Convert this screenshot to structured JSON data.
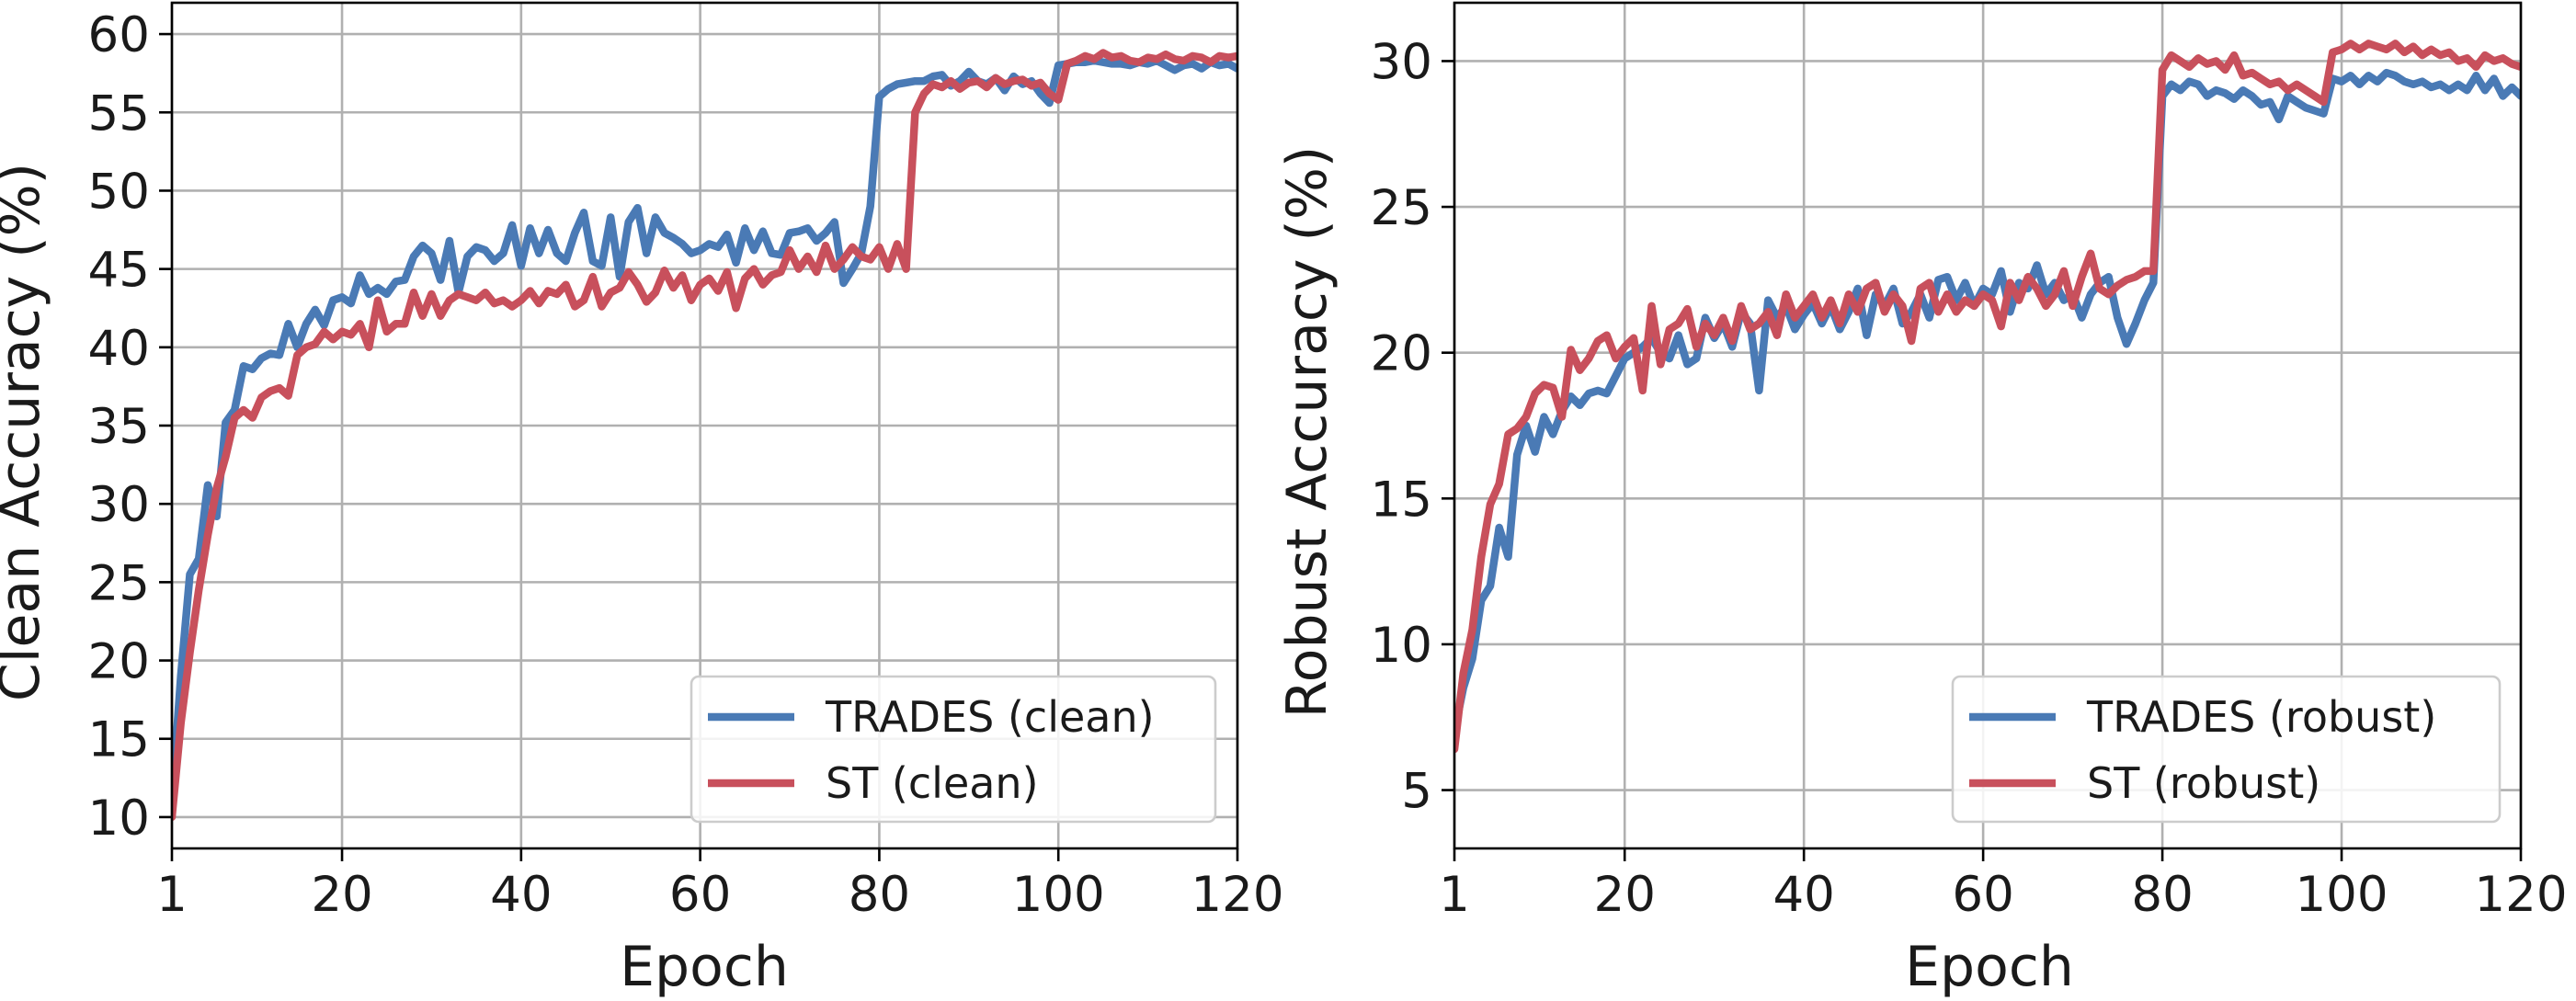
{
  "chart_data": [
    {
      "type": "line",
      "xlabel": "Epoch",
      "ylabel": "Clean Accuracy (%)",
      "xlim": [
        1,
        120
      ],
      "ylim": [
        8,
        62
      ],
      "xticks": [
        1,
        20,
        40,
        60,
        80,
        100,
        120
      ],
      "yticks": [
        10,
        15,
        20,
        25,
        30,
        35,
        40,
        45,
        50,
        55,
        60
      ],
      "grid": true,
      "legend_position": "bottom-right",
      "series": [
        {
          "name": "TRADES (clean)",
          "color": "#4a7ab5",
          "x": [
            1,
            2,
            3,
            4,
            5,
            6,
            7,
            8,
            9,
            10,
            11,
            12,
            13,
            14,
            15,
            16,
            17,
            18,
            19,
            20,
            21,
            22,
            23,
            24,
            25,
            26,
            27,
            28,
            29,
            30,
            31,
            32,
            33,
            34,
            35,
            36,
            37,
            38,
            39,
            40,
            41,
            42,
            43,
            44,
            45,
            46,
            47,
            48,
            49,
            50,
            51,
            52,
            53,
            54,
            55,
            56,
            57,
            58,
            59,
            60,
            61,
            62,
            63,
            64,
            65,
            66,
            67,
            68,
            69,
            70,
            71,
            72,
            73,
            74,
            75,
            76,
            77,
            78,
            79,
            80,
            81,
            82,
            83,
            84,
            85,
            86,
            87,
            88,
            89,
            90,
            91,
            92,
            93,
            94,
            95,
            96,
            97,
            98,
            99,
            100,
            101,
            102,
            103,
            104,
            105,
            106,
            107,
            108,
            109,
            110,
            111,
            112,
            113,
            114,
            115,
            116,
            117,
            118,
            119,
            120
          ],
          "y": [
            11.0,
            19.0,
            25.5,
            26.5,
            31.2,
            29.2,
            35.2,
            36.0,
            38.8,
            38.6,
            39.3,
            39.6,
            39.5,
            41.5,
            40.0,
            41.5,
            42.4,
            41.4,
            43.0,
            43.2,
            42.8,
            44.6,
            43.4,
            43.8,
            43.4,
            44.2,
            44.3,
            45.8,
            46.5,
            46.0,
            44.3,
            46.8,
            43.5,
            45.8,
            46.4,
            46.2,
            45.5,
            46.0,
            47.8,
            45.2,
            47.6,
            46.0,
            47.5,
            46.0,
            45.5,
            47.3,
            48.6,
            45.5,
            45.2,
            48.3,
            44.5,
            48.0,
            48.9,
            46.0,
            48.3,
            47.3,
            47.0,
            46.6,
            46.0,
            46.2,
            46.6,
            46.4,
            47.2,
            45.4,
            47.6,
            46.2,
            47.4,
            46.0,
            45.9,
            47.3,
            47.4,
            47.6,
            46.8,
            47.3,
            48.0,
            44.1,
            45.0,
            46.0,
            49.0,
            56.0,
            56.5,
            56.8,
            56.9,
            57.0,
            57.0,
            57.3,
            57.4,
            56.7,
            57.0,
            57.6,
            57.0,
            56.8,
            57.2,
            56.4,
            57.3,
            56.8,
            57.0,
            56.2,
            55.6,
            58.0,
            58.1,
            58.2,
            58.2,
            58.3,
            58.2,
            58.1,
            58.1,
            58.0,
            58.2,
            58.1,
            58.3,
            58.0,
            57.7,
            58.0,
            58.1,
            57.8,
            58.2,
            58.0,
            58.1,
            57.8
          ]
        },
        {
          "name": "ST (clean)",
          "color": "#c8505c",
          "x": [
            1,
            2,
            3,
            4,
            5,
            6,
            7,
            8,
            9,
            10,
            11,
            12,
            13,
            14,
            15,
            16,
            17,
            18,
            19,
            20,
            21,
            22,
            23,
            24,
            25,
            26,
            27,
            28,
            29,
            30,
            31,
            32,
            33,
            34,
            35,
            36,
            37,
            38,
            39,
            40,
            41,
            42,
            43,
            44,
            45,
            46,
            47,
            48,
            49,
            50,
            51,
            52,
            53,
            54,
            55,
            56,
            57,
            58,
            59,
            60,
            61,
            62,
            63,
            64,
            65,
            66,
            67,
            68,
            69,
            70,
            71,
            72,
            73,
            74,
            75,
            76,
            77,
            78,
            79,
            80,
            81,
            82,
            83,
            84,
            85,
            86,
            87,
            88,
            89,
            90,
            91,
            92,
            93,
            94,
            95,
            96,
            97,
            98,
            99,
            100,
            101,
            102,
            103,
            104,
            105,
            106,
            107,
            108,
            109,
            110,
            111,
            112,
            113,
            114,
            115,
            116,
            117,
            118,
            119,
            120
          ],
          "y": [
            10.0,
            16.0,
            20.5,
            24.5,
            28.0,
            31.0,
            33.0,
            35.5,
            36.0,
            35.5,
            36.8,
            37.2,
            37.4,
            36.9,
            39.5,
            40.0,
            40.2,
            41.0,
            40.5,
            41.0,
            40.8,
            41.5,
            40.0,
            43.0,
            41.0,
            41.5,
            41.5,
            43.5,
            42.0,
            43.4,
            42.0,
            43.0,
            43.4,
            43.2,
            43.0,
            43.5,
            42.8,
            43.0,
            42.6,
            43.0,
            43.6,
            42.8,
            43.6,
            43.4,
            44.0,
            42.6,
            43.0,
            44.5,
            42.6,
            43.5,
            43.8,
            44.8,
            44.0,
            42.9,
            43.5,
            44.9,
            43.8,
            44.6,
            43.0,
            44.0,
            44.4,
            43.6,
            44.8,
            42.5,
            44.4,
            45.0,
            44.0,
            44.6,
            44.8,
            46.2,
            45.0,
            45.8,
            44.8,
            46.5,
            45.0,
            45.6,
            46.4,
            45.8,
            45.6,
            46.4,
            45.0,
            46.6,
            45.0,
            55.0,
            56.2,
            56.8,
            56.6,
            57.0,
            56.5,
            56.9,
            57.0,
            56.6,
            57.2,
            56.8,
            57.0,
            57.1,
            56.7,
            56.9,
            56.2,
            55.8,
            58.1,
            58.3,
            58.6,
            58.4,
            58.8,
            58.5,
            58.6,
            58.3,
            58.2,
            58.5,
            58.4,
            58.7,
            58.4,
            58.3,
            58.6,
            58.5,
            58.2,
            58.6,
            58.5,
            58.6
          ]
        }
      ]
    },
    {
      "type": "line",
      "xlabel": "Epoch",
      "ylabel": "Robust Accuracy (%)",
      "xlim": [
        1,
        120
      ],
      "ylim": [
        3,
        32
      ],
      "xticks": [
        1,
        20,
        40,
        60,
        80,
        100,
        120
      ],
      "yticks": [
        5,
        10,
        15,
        20,
        25,
        30
      ],
      "grid": true,
      "legend_position": "bottom-right",
      "series": [
        {
          "name": "TRADES (robust)",
          "color": "#4a7ab5",
          "x": [
            1,
            2,
            3,
            4,
            5,
            6,
            7,
            8,
            9,
            10,
            11,
            12,
            13,
            14,
            15,
            16,
            17,
            18,
            19,
            20,
            21,
            22,
            23,
            24,
            25,
            26,
            27,
            28,
            29,
            30,
            31,
            32,
            33,
            34,
            35,
            36,
            37,
            38,
            39,
            40,
            41,
            42,
            43,
            44,
            45,
            46,
            47,
            48,
            49,
            50,
            51,
            52,
            53,
            54,
            55,
            56,
            57,
            58,
            59,
            60,
            61,
            62,
            63,
            64,
            65,
            66,
            67,
            68,
            69,
            70,
            71,
            72,
            73,
            74,
            75,
            76,
            77,
            78,
            79,
            80,
            81,
            82,
            83,
            84,
            85,
            86,
            87,
            88,
            89,
            90,
            91,
            92,
            93,
            94,
            95,
            96,
            97,
            98,
            99,
            100,
            101,
            102,
            103,
            104,
            105,
            106,
            107,
            108,
            109,
            110,
            111,
            112,
            113,
            114,
            115,
            116,
            117,
            118,
            119,
            120
          ],
          "y": [
            7.0,
            8.5,
            9.5,
            11.5,
            12.0,
            14.0,
            13.0,
            16.5,
            17.5,
            16.6,
            17.8,
            17.2,
            18.0,
            18.5,
            18.2,
            18.6,
            18.7,
            18.6,
            19.2,
            19.8,
            20.0,
            20.2,
            20.5,
            20.0,
            19.8,
            20.6,
            19.6,
            19.8,
            21.2,
            20.5,
            21.0,
            20.2,
            21.4,
            21.0,
            18.7,
            21.8,
            21.2,
            21.6,
            20.8,
            21.3,
            21.7,
            21.0,
            21.6,
            20.8,
            21.4,
            22.2,
            20.6,
            22.0,
            21.6,
            22.2,
            21.0,
            21.4,
            22.0,
            21.2,
            22.5,
            22.6,
            21.8,
            22.4,
            21.6,
            22.2,
            22.0,
            22.8,
            21.4,
            22.4,
            22.2,
            23.0,
            22.0,
            22.4,
            21.8,
            22.0,
            21.2,
            22.0,
            22.4,
            22.6,
            21.2,
            20.3,
            21.0,
            21.8,
            22.4,
            28.8,
            29.2,
            29.0,
            29.3,
            29.2,
            28.8,
            29.0,
            28.9,
            28.7,
            29.0,
            28.8,
            28.5,
            28.6,
            28.0,
            28.8,
            28.6,
            28.4,
            28.3,
            28.2,
            29.4,
            29.3,
            29.5,
            29.2,
            29.5,
            29.3,
            29.6,
            29.5,
            29.3,
            29.2,
            29.3,
            29.1,
            29.2,
            29.0,
            29.2,
            29.0,
            29.5,
            29.0,
            29.4,
            28.8,
            29.1,
            28.8
          ]
        },
        {
          "name": "ST (robust)",
          "color": "#c8505c",
          "x": [
            1,
            2,
            3,
            4,
            5,
            6,
            7,
            8,
            9,
            10,
            11,
            12,
            13,
            14,
            15,
            16,
            17,
            18,
            19,
            20,
            21,
            22,
            23,
            24,
            25,
            26,
            27,
            28,
            29,
            30,
            31,
            32,
            33,
            34,
            35,
            36,
            37,
            38,
            39,
            40,
            41,
            42,
            43,
            44,
            45,
            46,
            47,
            48,
            49,
            50,
            51,
            52,
            53,
            54,
            55,
            56,
            57,
            58,
            59,
            60,
            61,
            62,
            63,
            64,
            65,
            66,
            67,
            68,
            69,
            70,
            71,
            72,
            73,
            74,
            75,
            76,
            77,
            78,
            79,
            80,
            81,
            82,
            83,
            84,
            85,
            86,
            87,
            88,
            89,
            90,
            91,
            92,
            93,
            94,
            95,
            96,
            97,
            98,
            99,
            100,
            101,
            102,
            103,
            104,
            105,
            106,
            107,
            108,
            109,
            110,
            111,
            112,
            113,
            114,
            115,
            116,
            117,
            118,
            119,
            120
          ],
          "y": [
            6.4,
            9.0,
            10.5,
            13.0,
            14.8,
            15.5,
            17.2,
            17.4,
            17.8,
            18.6,
            18.9,
            18.8,
            17.8,
            20.1,
            19.4,
            19.8,
            20.4,
            20.6,
            19.8,
            20.2,
            20.5,
            18.7,
            21.6,
            19.6,
            20.8,
            21.0,
            21.5,
            20.2,
            21.0,
            20.6,
            21.2,
            20.4,
            21.6,
            20.8,
            21.0,
            21.4,
            20.6,
            22.0,
            21.2,
            21.6,
            22.0,
            21.2,
            21.8,
            21.0,
            22.0,
            21.4,
            22.2,
            22.4,
            21.4,
            22.0,
            21.6,
            20.4,
            22.2,
            22.4,
            21.4,
            22.0,
            21.4,
            21.8,
            21.6,
            22.0,
            21.8,
            20.9,
            22.4,
            21.8,
            22.6,
            22.2,
            21.6,
            22.0,
            22.8,
            21.6,
            22.6,
            23.4,
            22.2,
            22.0,
            22.3,
            22.5,
            22.6,
            22.8,
            22.8,
            29.7,
            30.2,
            30.0,
            29.8,
            30.1,
            29.9,
            30.0,
            29.7,
            30.2,
            29.5,
            29.6,
            29.4,
            29.2,
            29.3,
            29.0,
            29.2,
            29.0,
            28.8,
            28.6,
            30.3,
            30.4,
            30.6,
            30.4,
            30.6,
            30.5,
            30.4,
            30.6,
            30.3,
            30.5,
            30.2,
            30.4,
            30.2,
            30.3,
            30.0,
            30.1,
            29.8,
            30.2,
            30.0,
            30.1,
            29.9,
            29.8
          ]
        }
      ]
    }
  ]
}
